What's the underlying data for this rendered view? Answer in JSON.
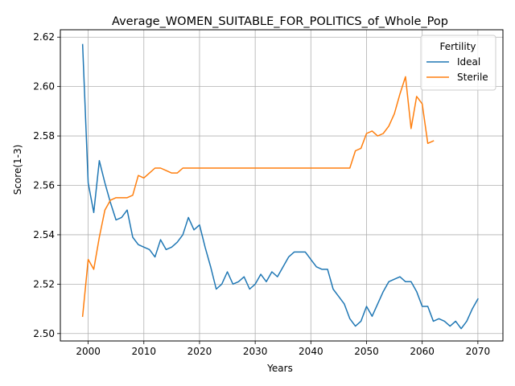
{
  "chart_data": {
    "type": "line",
    "title": "Average_WOMEN_SUITABLE_FOR_POLITICS_of_Whole_Pop",
    "xlabel": "Years",
    "ylabel": "Score(1-3)",
    "xlim": [
      1995,
      2074.5
    ],
    "ylim": [
      2.497,
      2.623
    ],
    "xticks": [
      2000,
      2010,
      2020,
      2030,
      2040,
      2050,
      2060,
      2070
    ],
    "yticks": [
      2.5,
      2.52,
      2.54,
      2.56,
      2.58,
      2.6,
      2.62
    ],
    "ytick_labels": [
      "2.50",
      "2.52",
      "2.54",
      "2.56",
      "2.58",
      "2.60",
      "2.62"
    ],
    "grid": true,
    "legend": {
      "title": "Fertility",
      "placement": "top-right"
    },
    "series": [
      {
        "name": "Ideal",
        "color": "#1f77b4",
        "x": [
          1999,
          2000,
          2001,
          2002,
          2003,
          2004,
          2005,
          2006,
          2007,
          2008,
          2009,
          2010,
          2011,
          2012,
          2013,
          2014,
          2015,
          2016,
          2017,
          2018,
          2019,
          2020,
          2021,
          2022,
          2023,
          2024,
          2025,
          2026,
          2027,
          2028,
          2029,
          2030,
          2031,
          2032,
          2033,
          2034,
          2035,
          2036,
          2037,
          2038,
          2039,
          2040,
          2041,
          2042,
          2043,
          2044,
          2045,
          2046,
          2047,
          2048,
          2049,
          2050,
          2051,
          2052,
          2053,
          2054,
          2055,
          2056,
          2057,
          2058,
          2059,
          2060,
          2061,
          2062,
          2063,
          2064,
          2065,
          2066,
          2067,
          2068,
          2069,
          2070
        ],
        "y": [
          2.617,
          2.561,
          2.549,
          2.57,
          2.561,
          2.553,
          2.546,
          2.547,
          2.55,
          2.539,
          2.536,
          2.535,
          2.534,
          2.531,
          2.538,
          2.534,
          2.535,
          2.537,
          2.54,
          2.547,
          2.542,
          2.544,
          2.535,
          2.527,
          2.518,
          2.52,
          2.525,
          2.52,
          2.521,
          2.523,
          2.518,
          2.52,
          2.524,
          2.521,
          2.525,
          2.523,
          2.527,
          2.531,
          2.533,
          2.533,
          2.533,
          2.53,
          2.527,
          2.526,
          2.526,
          2.518,
          2.515,
          2.512,
          2.506,
          2.503,
          2.505,
          2.511,
          2.507,
          2.512,
          2.517,
          2.521,
          2.522,
          2.523,
          2.521,
          2.521,
          2.517,
          2.511,
          2.511,
          2.505,
          2.506,
          2.505,
          2.503,
          2.505,
          2.502,
          2.505,
          2.51,
          2.514
        ]
      },
      {
        "name": "Sterile",
        "color": "#ff7f0e",
        "x": [
          1999,
          2000,
          2001,
          2002,
          2003,
          2004,
          2005,
          2006,
          2007,
          2008,
          2009,
          2010,
          2011,
          2012,
          2013,
          2014,
          2015,
          2016,
          2017,
          2018,
          2019,
          2020,
          2021,
          2022,
          2023,
          2024,
          2025,
          2026,
          2027,
          2028,
          2029,
          2030,
          2031,
          2032,
          2033,
          2034,
          2035,
          2036,
          2037,
          2038,
          2039,
          2040,
          2041,
          2042,
          2043,
          2044,
          2045,
          2046,
          2047,
          2048,
          2049,
          2050,
          2051,
          2052,
          2053,
          2054,
          2055,
          2056,
          2057,
          2058,
          2059,
          2060,
          2061,
          2062
        ],
        "y": [
          2.507,
          2.53,
          2.526,
          2.539,
          2.55,
          2.554,
          2.555,
          2.555,
          2.555,
          2.556,
          2.564,
          2.563,
          2.565,
          2.567,
          2.567,
          2.566,
          2.565,
          2.565,
          2.567,
          2.567,
          2.567,
          2.567,
          2.567,
          2.567,
          2.567,
          2.567,
          2.567,
          2.567,
          2.567,
          2.567,
          2.567,
          2.567,
          2.567,
          2.567,
          2.567,
          2.567,
          2.567,
          2.567,
          2.567,
          2.567,
          2.567,
          2.567,
          2.567,
          2.567,
          2.567,
          2.567,
          2.567,
          2.567,
          2.567,
          2.574,
          2.575,
          2.581,
          2.582,
          2.58,
          2.581,
          2.584,
          2.589,
          2.597,
          2.604,
          2.583,
          2.596,
          2.593,
          2.577,
          2.578
        ]
      }
    ]
  }
}
